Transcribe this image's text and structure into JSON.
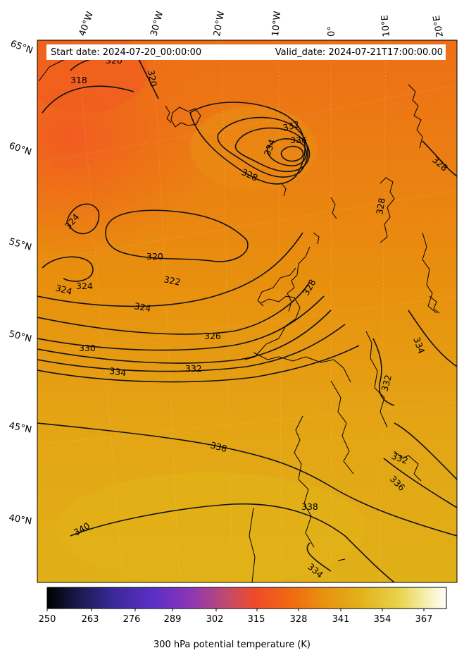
{
  "info": {
    "start_date": "Start date: 2024-07-20_00:00:00",
    "valid_date": "Valid_date: 2024-07-21T17:00:00.00"
  },
  "longitude_labels": [
    "40°W",
    "30°W",
    "20°W",
    "10°W",
    "0°",
    "10°E",
    "20°E"
  ],
  "latitude_labels": [
    "65°N",
    "60°N",
    "55°N",
    "50°N",
    "45°N",
    "40°N"
  ],
  "contour_labels": [
    "318",
    "320",
    "320",
    "324",
    "324",
    "324",
    "324",
    "322",
    "320",
    "326",
    "330",
    "334",
    "332",
    "332",
    "334",
    "336",
    "328",
    "328",
    "328",
    "328",
    "334",
    "332",
    "332",
    "336",
    "338",
    "338",
    "340",
    "334"
  ],
  "colorbar": {
    "ticks": [
      "250",
      "263",
      "276",
      "289",
      "302",
      "315",
      "328",
      "341",
      "354",
      "367"
    ],
    "title": "300 hPa potential temperature (K)",
    "colors": [
      "#000000",
      "#1a1a4f",
      "#3b2a9a",
      "#5e2ec9",
      "#8c37b4",
      "#c24a6e",
      "#f14a2a",
      "#f06a10",
      "#e99010",
      "#e2b01a",
      "#e8d24a",
      "#f6efb0",
      "#ffffff"
    ]
  }
}
